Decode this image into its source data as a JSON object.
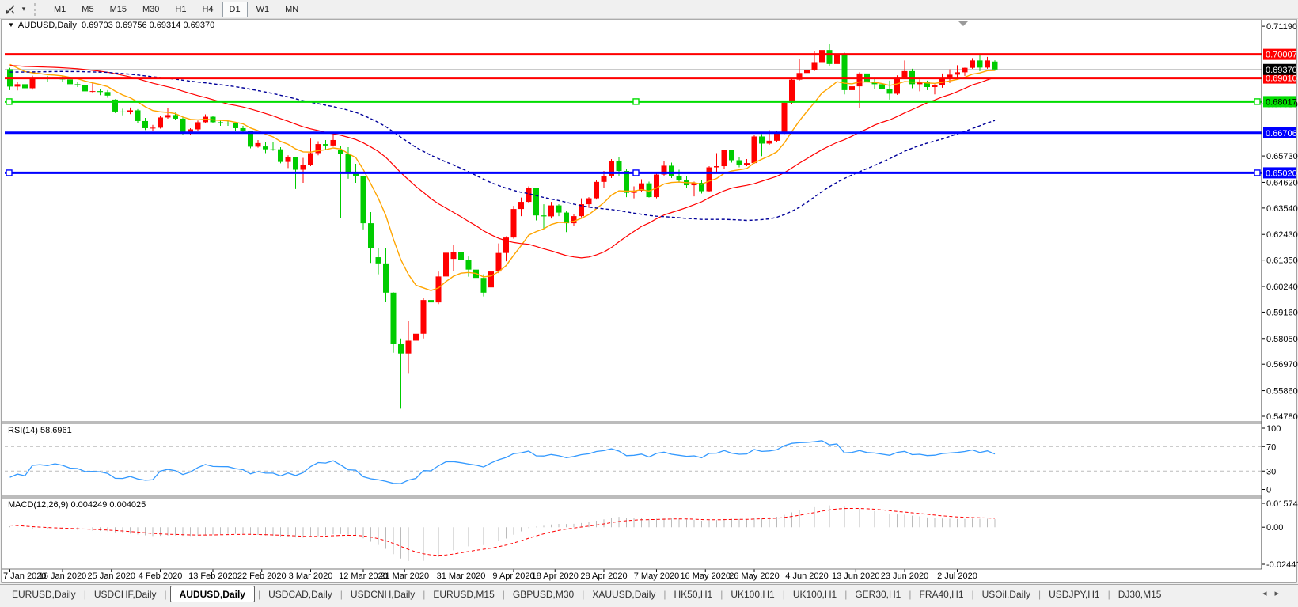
{
  "toolbar": {
    "menu_caret": "▾",
    "timeframes": [
      {
        "label": "M1",
        "active": false
      },
      {
        "label": "M5",
        "active": false
      },
      {
        "label": "M15",
        "active": false
      },
      {
        "label": "M30",
        "active": false
      },
      {
        "label": "H1",
        "active": false
      },
      {
        "label": "H4",
        "active": false
      },
      {
        "label": "D1",
        "active": true
      },
      {
        "label": "W1",
        "active": false
      },
      {
        "label": "MN",
        "active": false
      }
    ]
  },
  "chart_window": {
    "menu_icon": "▼",
    "title_text": "AUDUSD,Daily  0.69703 0.69756 0.69314 0.69370",
    "symbol": "AUDUSD",
    "period": "Daily",
    "open": "0.69703",
    "high": "0.69756",
    "low": "0.69314",
    "close": "0.69370"
  },
  "chart_data": {
    "type": "candlestick",
    "symbol": "AUDUSD",
    "timeframe": "Daily",
    "background": "#ffffff",
    "bull_color": "#ff0000",
    "bear_color": "#00cc00",
    "ma_seed": {
      "start": 0.685,
      "end": 0.699,
      "count": 60
    },
    "moving_averages": [
      {
        "name": "ma-fast",
        "method": "ema",
        "period": 10,
        "color": "#ffa500",
        "width": 1.4,
        "dash": ""
      },
      {
        "name": "ma-mid",
        "method": "sma",
        "period": 30,
        "color": "#ff0000",
        "width": 1.2,
        "dash": ""
      },
      {
        "name": "ma-slow",
        "method": "sma",
        "period": 55,
        "color": "#000099",
        "width": 1.4,
        "dash": "4 3"
      }
    ],
    "y_axis": {
      "ticks": [
        {
          "label": "0.71190",
          "price": 0.7119
        },
        {
          "label": "0.67920",
          "price": 0.6792
        },
        {
          "label": "0.65730",
          "price": 0.6573
        },
        {
          "label": "0.64620",
          "price": 0.6462
        },
        {
          "label": "0.63540",
          "price": 0.6354
        },
        {
          "label": "0.62430",
          "price": 0.6243
        },
        {
          "label": "0.61350",
          "price": 0.6135
        },
        {
          "label": "0.60240",
          "price": 0.6024
        },
        {
          "label": "0.59160",
          "price": 0.5916
        },
        {
          "label": "0.58050",
          "price": 0.5805
        },
        {
          "label": "0.56970",
          "price": 0.5697
        },
        {
          "label": "0.55860",
          "price": 0.5586
        },
        {
          "label": "0.54780",
          "price": 0.5478
        }
      ],
      "visible_range": [
        0.5458,
        0.7136
      ]
    },
    "hlines": [
      {
        "price": 0.70007,
        "label": "0.70007",
        "color": "#ff0000",
        "text_color": "#ffffff",
        "selected": false
      },
      {
        "price": 0.6901,
        "label": "0.69010",
        "color": "#ff0000",
        "text_color": "#ffffff",
        "selected": false
      },
      {
        "price": 0.68017,
        "label": "0.68017",
        "color": "#00dd00",
        "text_color": "#000000",
        "selected": true
      },
      {
        "price": 0.66706,
        "label": "0.66706",
        "color": "#0000ff",
        "text_color": "#ffffff",
        "selected": false
      },
      {
        "price": 0.6502,
        "label": "0.65020",
        "color": "#0000ff",
        "text_color": "#ffffff",
        "selected": true
      }
    ],
    "current_price": {
      "value": 0.6937,
      "label": "0.69370",
      "line_color": "#b8b8b8",
      "badge_bg": "#000000",
      "badge_fg": "#ffffff"
    },
    "x_axis": {
      "labels": [
        {
          "text": "7 Jan 2020",
          "idx": 0
        },
        {
          "text": "16 Jan 2020",
          "idx": 7
        },
        {
          "text": "25 Jan 2020",
          "idx": 13.5
        },
        {
          "text": "4 Feb 2020",
          "idx": 20
        },
        {
          "text": "13 Feb 2020",
          "idx": 27
        },
        {
          "text": "22 Feb 2020",
          "idx": 33.5
        },
        {
          "text": "3 Mar 2020",
          "idx": 40
        },
        {
          "text": "12 Mar 2020",
          "idx": 47
        },
        {
          "text": "21 Mar 2020",
          "idx": 52.5
        },
        {
          "text": "31 Mar 2020",
          "idx": 60
        },
        {
          "text": "9 Apr 2020",
          "idx": 67
        },
        {
          "text": "18 Apr 2020",
          "idx": 72.5
        },
        {
          "text": "28 Apr 2020",
          "idx": 79
        },
        {
          "text": "7 May 2020",
          "idx": 86
        },
        {
          "text": "16 May 2020",
          "idx": 92.5
        },
        {
          "text": "26 May 2020",
          "idx": 99
        },
        {
          "text": "4 Jun 2020",
          "idx": 106
        },
        {
          "text": "13 Jun 2020",
          "idx": 112.5
        },
        {
          "text": "23 Jun 2020",
          "idx": 119
        },
        {
          "text": "2 Jul 2020",
          "idx": 126
        }
      ]
    },
    "candles": [
      [
        0.6938,
        0.6944,
        0.685,
        0.6865
      ],
      [
        0.6865,
        0.6885,
        0.6849,
        0.6875
      ],
      [
        0.6875,
        0.688,
        0.6848,
        0.6858
      ],
      [
        0.6858,
        0.6911,
        0.6852,
        0.69
      ],
      [
        0.69,
        0.692,
        0.689,
        0.6903
      ],
      [
        0.6903,
        0.691,
        0.6883,
        0.6897
      ],
      [
        0.6897,
        0.6925,
        0.6886,
        0.6905
      ],
      [
        0.6905,
        0.691,
        0.6885,
        0.6895
      ],
      [
        0.6895,
        0.69,
        0.6862,
        0.6875
      ],
      [
        0.6875,
        0.6885,
        0.6863,
        0.6872
      ],
      [
        0.6872,
        0.688,
        0.6838,
        0.6845
      ],
      [
        0.6845,
        0.688,
        0.684,
        0.6846
      ],
      [
        0.6846,
        0.6855,
        0.6829,
        0.6842
      ],
      [
        0.6842,
        0.685,
        0.6818,
        0.6827
      ],
      [
        0.681,
        0.6812,
        0.6754,
        0.676
      ],
      [
        0.676,
        0.6772,
        0.6744,
        0.6757
      ],
      [
        0.6757,
        0.6777,
        0.6749,
        0.6765
      ],
      [
        0.6765,
        0.677,
        0.671,
        0.672
      ],
      [
        0.672,
        0.6733,
        0.6682,
        0.669
      ],
      [
        0.669,
        0.6704,
        0.6678,
        0.6692
      ],
      [
        0.6692,
        0.674,
        0.6688,
        0.6735
      ],
      [
        0.6735,
        0.6774,
        0.673,
        0.6745
      ],
      [
        0.6745,
        0.6755,
        0.6724,
        0.673
      ],
      [
        0.673,
        0.6735,
        0.6662,
        0.667
      ],
      [
        0.667,
        0.669,
        0.666,
        0.6685
      ],
      [
        0.6685,
        0.6722,
        0.668,
        0.6715
      ],
      [
        0.6715,
        0.6748,
        0.671,
        0.6738
      ],
      [
        0.6738,
        0.674,
        0.671,
        0.6715
      ],
      [
        0.6715,
        0.6723,
        0.67,
        0.6713
      ],
      [
        0.6713,
        0.672,
        0.67,
        0.6712
      ],
      [
        0.6712,
        0.6715,
        0.668,
        0.669
      ],
      [
        0.669,
        0.67,
        0.667,
        0.6677
      ],
      [
        0.6677,
        0.668,
        0.6605,
        0.6612
      ],
      [
        0.6612,
        0.664,
        0.6608,
        0.6627
      ],
      [
        0.6613,
        0.6632,
        0.6585,
        0.6601
      ],
      [
        0.6601,
        0.6632,
        0.6595,
        0.6601
      ],
      [
        0.6601,
        0.661,
        0.6542,
        0.6548
      ],
      [
        0.6548,
        0.6576,
        0.6522,
        0.6567
      ],
      [
        0.6567,
        0.657,
        0.6434,
        0.6515
      ],
      [
        0.6515,
        0.6565,
        0.646,
        0.6535
      ],
      [
        0.6535,
        0.6646,
        0.653,
        0.6585
      ],
      [
        0.6585,
        0.6635,
        0.6576,
        0.6623
      ],
      [
        0.6623,
        0.664,
        0.66,
        0.6617
      ],
      [
        0.6617,
        0.667,
        0.6612,
        0.664
      ],
      [
        0.6598,
        0.6615,
        0.6313,
        0.6583
      ],
      [
        0.6583,
        0.661,
        0.6477,
        0.6498
      ],
      [
        0.6498,
        0.654,
        0.646,
        0.6489
      ],
      [
        0.6489,
        0.649,
        0.6264,
        0.629
      ],
      [
        0.629,
        0.6337,
        0.6123,
        0.6185
      ],
      [
        0.6147,
        0.6185,
        0.6075,
        0.6121
      ],
      [
        0.6121,
        0.6185,
        0.5958,
        0.5998
      ],
      [
        0.5998,
        0.6,
        0.5745,
        0.5781
      ],
      [
        0.5781,
        0.5805,
        0.551,
        0.5742
      ],
      [
        0.5742,
        0.588,
        0.566,
        0.5796
      ],
      [
        0.5796,
        0.5845,
        0.5686,
        0.5825
      ],
      [
        0.5825,
        0.5975,
        0.5805,
        0.5967
      ],
      [
        0.5967,
        0.6025,
        0.587,
        0.5957
      ],
      [
        0.5957,
        0.6087,
        0.595,
        0.6066
      ],
      [
        0.6066,
        0.621,
        0.6055,
        0.6166
      ],
      [
        0.614,
        0.62,
        0.609,
        0.617
      ],
      [
        0.617,
        0.62,
        0.612,
        0.6137
      ],
      [
        0.6137,
        0.615,
        0.6065,
        0.6095
      ],
      [
        0.6095,
        0.6105,
        0.598,
        0.606
      ],
      [
        0.606,
        0.6075,
        0.5982,
        0.5998
      ],
      [
        0.602,
        0.6095,
        0.6015,
        0.6087
      ],
      [
        0.6087,
        0.6205,
        0.608,
        0.6165
      ],
      [
        0.6165,
        0.6235,
        0.613,
        0.623
      ],
      [
        0.623,
        0.6363,
        0.6225,
        0.635
      ],
      [
        0.635,
        0.6398,
        0.632,
        0.638
      ],
      [
        0.638,
        0.6445,
        0.6375,
        0.6438
      ],
      [
        0.6438,
        0.644,
        0.6302,
        0.6323
      ],
      [
        0.6323,
        0.637,
        0.6265,
        0.6319
      ],
      [
        0.6319,
        0.638,
        0.631,
        0.6365
      ],
      [
        0.6365,
        0.637,
        0.632,
        0.6335
      ],
      [
        0.6335,
        0.634,
        0.6253,
        0.629
      ],
      [
        0.629,
        0.633,
        0.628,
        0.632
      ],
      [
        0.632,
        0.6395,
        0.6315,
        0.637
      ],
      [
        0.637,
        0.64,
        0.6355,
        0.6395
      ],
      [
        0.6395,
        0.6472,
        0.639,
        0.6464
      ],
      [
        0.6464,
        0.651,
        0.644,
        0.649
      ],
      [
        0.649,
        0.656,
        0.648,
        0.655
      ],
      [
        0.655,
        0.657,
        0.649,
        0.651
      ],
      [
        0.651,
        0.652,
        0.64,
        0.6418
      ],
      [
        0.6418,
        0.6445,
        0.6395,
        0.6427
      ],
      [
        0.6427,
        0.6475,
        0.642,
        0.6458
      ],
      [
        0.6458,
        0.6465,
        0.6398,
        0.64
      ],
      [
        0.64,
        0.65,
        0.6395,
        0.6495
      ],
      [
        0.6495,
        0.655,
        0.649,
        0.6532
      ],
      [
        0.6532,
        0.6545,
        0.648,
        0.649
      ],
      [
        0.649,
        0.6515,
        0.6465,
        0.647
      ],
      [
        0.647,
        0.649,
        0.644,
        0.645
      ],
      [
        0.645,
        0.6465,
        0.6403,
        0.646
      ],
      [
        0.646,
        0.647,
        0.6415,
        0.6425
      ],
      [
        0.6425,
        0.653,
        0.642,
        0.6525
      ],
      [
        0.6525,
        0.6585,
        0.6505,
        0.653
      ],
      [
        0.653,
        0.66,
        0.652,
        0.6598
      ],
      [
        0.6598,
        0.66,
        0.6545,
        0.6555
      ],
      [
        0.6555,
        0.657,
        0.6525,
        0.6536
      ],
      [
        0.6536,
        0.656,
        0.653,
        0.6543
      ],
      [
        0.6543,
        0.6663,
        0.654,
        0.6655
      ],
      [
        0.6655,
        0.6665,
        0.6572,
        0.6625
      ],
      [
        0.6625,
        0.6682,
        0.662,
        0.6637
      ],
      [
        0.6637,
        0.668,
        0.663,
        0.6667
      ],
      [
        0.6667,
        0.6805,
        0.6665,
        0.6797
      ],
      [
        0.6797,
        0.69,
        0.679,
        0.6894
      ],
      [
        0.6894,
        0.6983,
        0.689,
        0.6922
      ],
      [
        0.6922,
        0.6988,
        0.69,
        0.6936
      ],
      [
        0.6936,
        0.7013,
        0.693,
        0.6968
      ],
      [
        0.6968,
        0.7025,
        0.696,
        0.7019
      ],
      [
        0.7019,
        0.7043,
        0.695,
        0.696
      ],
      [
        0.696,
        0.7063,
        0.692,
        0.7
      ],
      [
        0.7,
        0.7008,
        0.6832,
        0.685
      ],
      [
        0.685,
        0.691,
        0.68,
        0.6866
      ],
      [
        0.6866,
        0.6925,
        0.6775,
        0.692
      ],
      [
        0.692,
        0.6977,
        0.686,
        0.6884
      ],
      [
        0.6884,
        0.69,
        0.6855,
        0.6875
      ],
      [
        0.6875,
        0.6885,
        0.6837,
        0.6855
      ],
      [
        0.6855,
        0.689,
        0.681,
        0.6835
      ],
      [
        0.6835,
        0.6912,
        0.683,
        0.6905
      ],
      [
        0.6905,
        0.6975,
        0.69,
        0.693
      ],
      [
        0.693,
        0.694,
        0.6858,
        0.6875
      ],
      [
        0.6875,
        0.6895,
        0.6845,
        0.6885
      ],
      [
        0.6885,
        0.689,
        0.685,
        0.6863
      ],
      [
        0.6863,
        0.6875,
        0.6832,
        0.687
      ],
      [
        0.687,
        0.692,
        0.686,
        0.6903
      ],
      [
        0.6903,
        0.6938,
        0.688,
        0.6915
      ],
      [
        0.6915,
        0.6955,
        0.69,
        0.6925
      ],
      [
        0.6925,
        0.6945,
        0.691,
        0.6944
      ],
      [
        0.6944,
        0.6985,
        0.694,
        0.6975
      ],
      [
        0.6975,
        0.6997,
        0.693,
        0.6945
      ],
      [
        0.6945,
        0.699,
        0.694,
        0.6975
      ],
      [
        0.69703,
        0.69756,
        0.69314,
        0.6937
      ]
    ],
    "rsi": {
      "label": "RSI(14) 58.6961",
      "period": 14,
      "value": "58.6961",
      "levels": [
        70,
        30
      ],
      "scale": [
        0,
        100
      ],
      "tick_labels": [
        "100",
        "70",
        "30",
        "0"
      ],
      "color": "#3399ff",
      "level_color": "#bbbbbb"
    },
    "macd": {
      "label": "MACD(12,26,9) 0.004249 0.004025",
      "fast": 12,
      "slow": 26,
      "signal": 9,
      "main_value": "0.004249",
      "signal_value": "0.004025",
      "range": [
        -0.024412,
        0.015741
      ],
      "tick_labels": [
        "0.015741",
        "0.00",
        "-0.024412"
      ],
      "hist_color": "#bbbbbb",
      "signal_color": "#ff0000"
    }
  },
  "tabs": {
    "scroll_left": "◂",
    "scroll_right": "▸",
    "items": [
      {
        "label": "EURUSD,Daily",
        "active": false
      },
      {
        "label": "USDCHF,Daily",
        "active": false
      },
      {
        "label": "AUDUSD,Daily",
        "active": true
      },
      {
        "label": "USDCAD,Daily",
        "active": false
      },
      {
        "label": "USDCNH,Daily",
        "active": false
      },
      {
        "label": "EURUSD,M15",
        "active": false
      },
      {
        "label": "GBPUSD,M30",
        "active": false
      },
      {
        "label": "XAUUSD,Daily",
        "active": false
      },
      {
        "label": "HK50,H1",
        "active": false
      },
      {
        "label": "UK100,H1",
        "active": false
      },
      {
        "label": "UK100,H1",
        "active": false
      },
      {
        "label": "GER30,H1",
        "active": false
      },
      {
        "label": "FRA40,H1",
        "active": false
      },
      {
        "label": "USOil,Daily",
        "active": false
      },
      {
        "label": "USDJPY,H1",
        "active": false
      },
      {
        "label": "DJ30,M15",
        "active": false
      }
    ]
  }
}
